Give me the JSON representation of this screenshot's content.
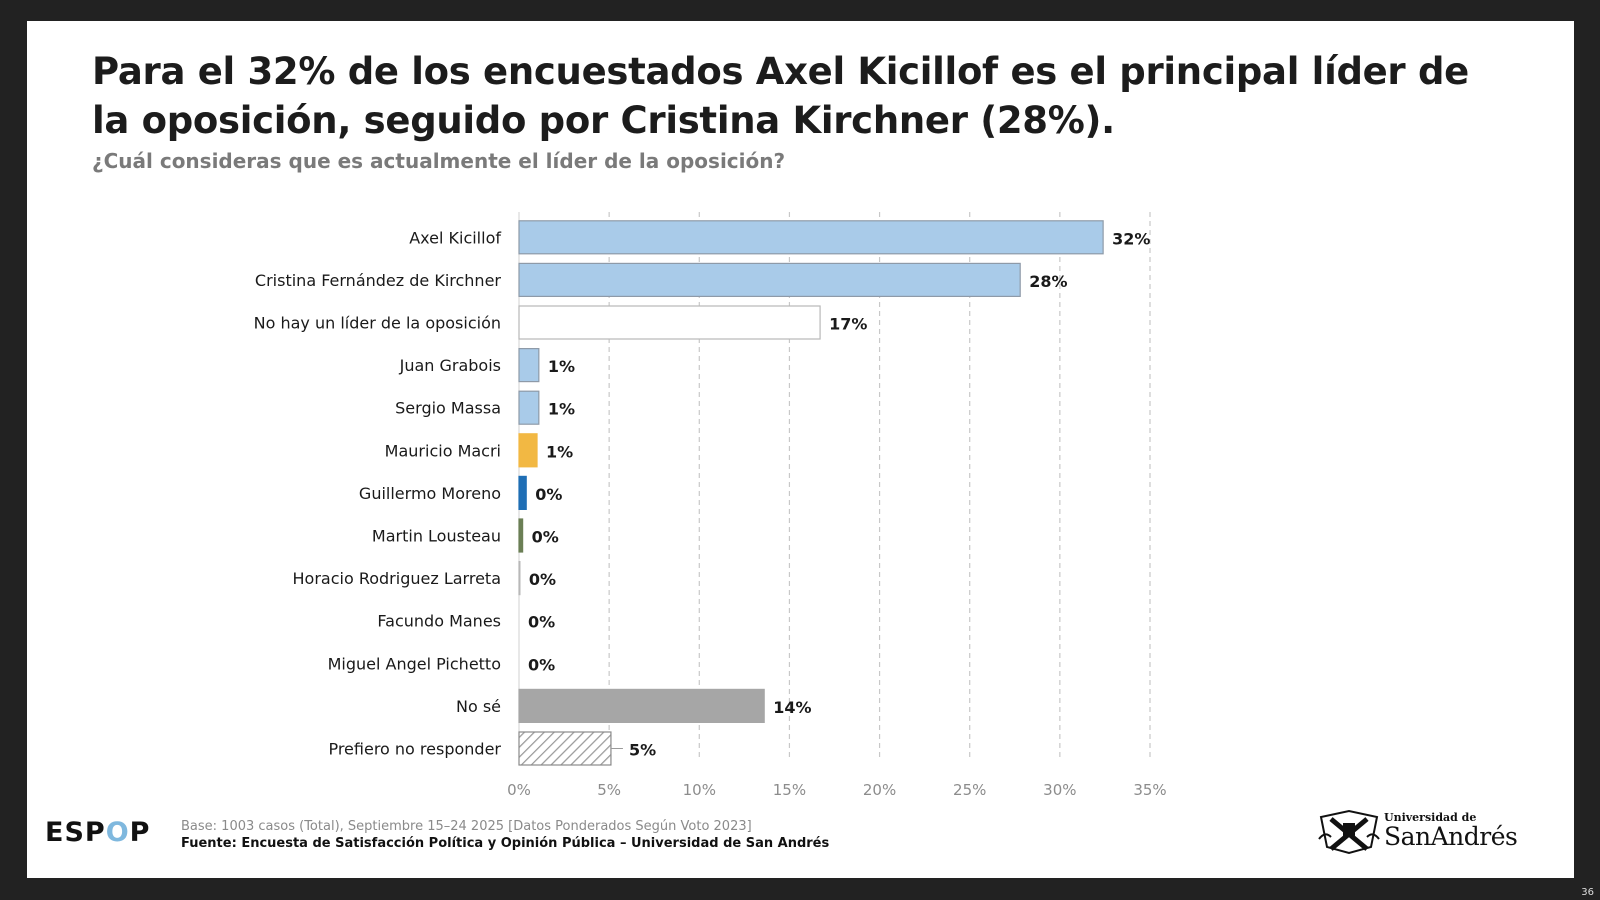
{
  "slide": {
    "title": "Para el 32% de los encuestados Axel Kicillof es el principal líder de la oposición, seguido por Cristina Kirchner (28%).",
    "subtitle": "¿Cuál consideras que es actualmente el líder de la oposición?",
    "page_number": "36"
  },
  "footer": {
    "brand_pre": "ESP",
    "brand_o": "O",
    "brand_post": "P",
    "base_note": "Base: 1003 casos (Total), Septiembre 15–24 2025 [Datos Ponderados Según Voto 2023]",
    "source": "Fuente: Encuesta de Satisfacción Política y Opinión Pública – Universidad de San Andrés",
    "logo_small": "Universidad de",
    "logo_big": "SanAndrés"
  },
  "colors": {
    "light_blue": "#a9cbe9",
    "white": "#ffffff",
    "gold": "#f2b843",
    "dark_blue": "#1f6eb5",
    "olive": "#6b7f55",
    "grey": "#a6a6a6",
    "hatch": "#9a9a9a"
  },
  "chart_data": {
    "type": "bar",
    "orientation": "horizontal",
    "title": "¿Cuál consideras que es actualmente el líder de la oposición?",
    "xlim": [
      0,
      35
    ],
    "ticks": [
      0,
      5,
      10,
      15,
      20,
      25,
      30,
      35
    ],
    "tick_labels": [
      "0%",
      "5%",
      "10%",
      "15%",
      "20%",
      "25%",
      "30%",
      "35%"
    ],
    "grid": "vertical dashed",
    "categories": [
      "Axel Kicillof",
      "Cristina Fernández de Kirchner",
      "No hay un líder de la oposición",
      "Juan Grabois",
      "Sergio Massa",
      "Mauricio Macri",
      "Guillermo Moreno",
      "Martin Lousteau",
      "Horacio Rodriguez Larreta",
      "Facundo Manes",
      "Miguel Angel Pichetto",
      "No sé",
      "Prefiero no responder"
    ],
    "values": [
      32.4,
      27.8,
      16.7,
      1.1,
      1.1,
      1.0,
      0.4,
      0.2,
      0.05,
      0.0,
      0.0,
      13.6,
      5.1
    ],
    "data_labels": [
      "32%",
      "28%",
      "17%",
      "1%",
      "1%",
      "1%",
      "0%",
      "0%",
      "0%",
      "0%",
      "0%",
      "14%",
      "5%"
    ],
    "fills": [
      "light_blue",
      "light_blue",
      "white",
      "light_blue",
      "light_blue",
      "gold",
      "dark_blue",
      "olive",
      "white",
      "white",
      "white",
      "grey",
      "hatch"
    ]
  }
}
